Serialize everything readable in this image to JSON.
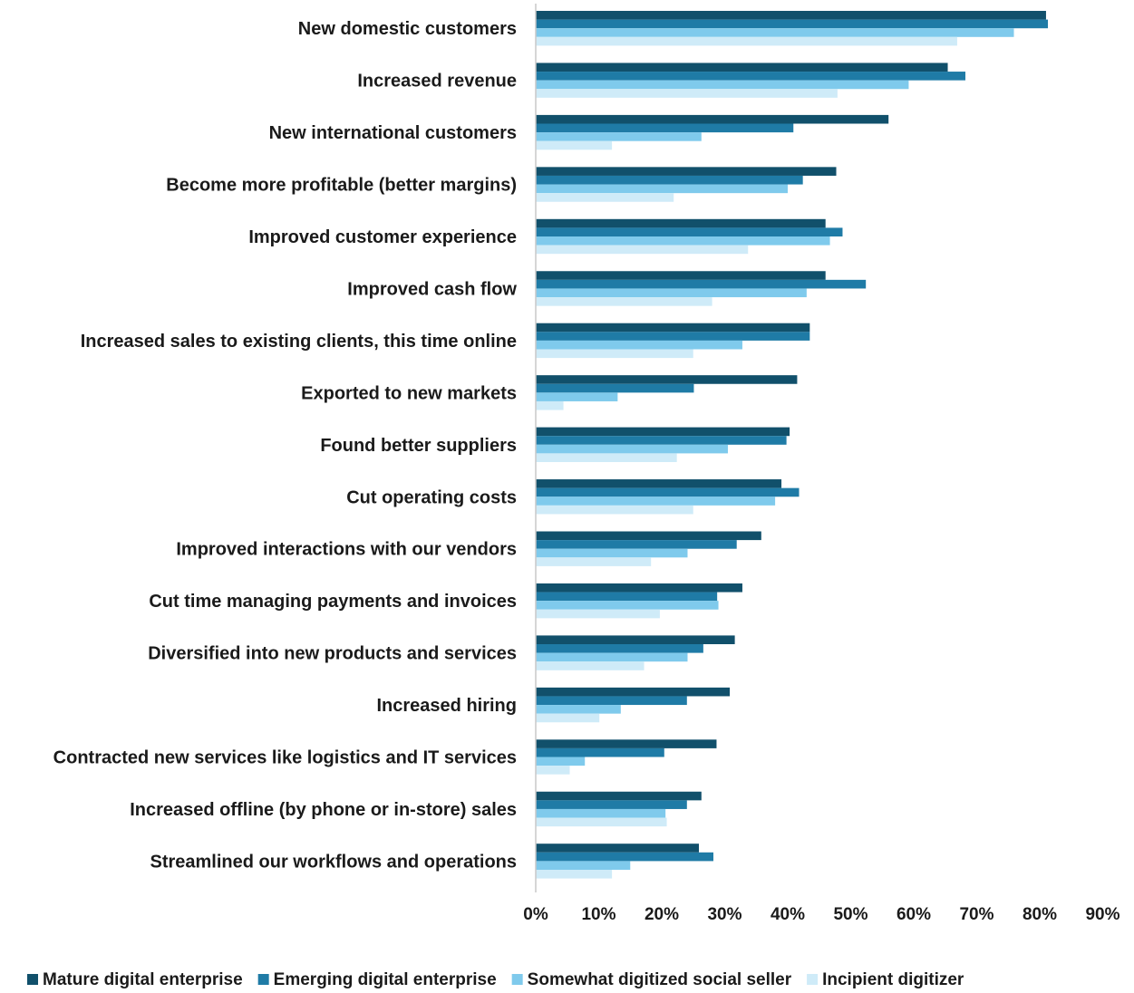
{
  "chart_data": {
    "type": "bar",
    "orientation": "horizontal",
    "title": "",
    "xlabel": "",
    "ylabel": "",
    "xlim": [
      0,
      90
    ],
    "x_ticks": [
      "0%",
      "10%",
      "20%",
      "30%",
      "40%",
      "50%",
      "60%",
      "70%",
      "80%",
      "90%"
    ],
    "grid": false,
    "legend_position": "bottom",
    "categories": [
      "New domestic customers",
      "Increased revenue",
      "New international customers",
      "Become more profitable (better margins)",
      "Improved customer experience",
      "Improved cash flow",
      "Increased sales to existing clients, this time online",
      "Exported to new markets",
      "Found better suppliers",
      "Cut operating costs",
      "Improved interactions with our vendors",
      "Cut time managing payments and invoices",
      "Diversified into new products and services",
      "Increased hiring",
      "Contracted new services like logistics and IT services",
      "Increased offline (by phone or in-store) sales",
      "Streamlined our workflows and operations"
    ],
    "series": [
      {
        "name": "Mature digital enterprise",
        "color": "#11506b",
        "values": [
          81,
          65.4,
          56,
          47.7,
          46,
          46,
          43.5,
          41.5,
          40.3,
          39,
          35.8,
          32.8,
          31.6,
          30.8,
          28.7,
          26.3,
          25.9
        ]
      },
      {
        "name": "Emerging digital enterprise",
        "color": "#1f7ba6",
        "values": [
          81.3,
          68.2,
          40.9,
          42.4,
          48.7,
          52.4,
          43.5,
          25.1,
          39.8,
          41.8,
          31.9,
          28.8,
          26.6,
          24,
          20.4,
          24,
          28.2
        ]
      },
      {
        "name": "Somewhat digitized social seller",
        "color": "#7fcaec",
        "values": [
          75.9,
          59.2,
          26.3,
          40,
          46.7,
          43,
          32.8,
          13,
          30.5,
          38,
          24.1,
          29,
          24.1,
          13.5,
          7.8,
          20.6,
          15
        ]
      },
      {
        "name": "Incipient digitizer",
        "color": "#cfebf8",
        "values": [
          66.9,
          47.9,
          12.1,
          21.9,
          33.7,
          28,
          25,
          4.4,
          22.4,
          25,
          18.3,
          19.7,
          17.2,
          10.1,
          5.4,
          20.8,
          12.1
        ]
      }
    ]
  }
}
